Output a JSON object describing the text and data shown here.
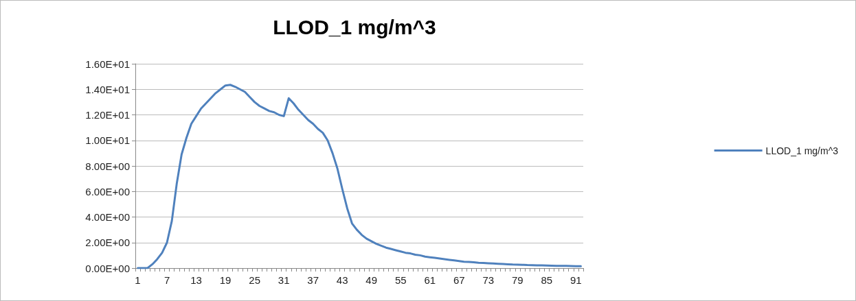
{
  "chart_data": {
    "type": "line",
    "title": "LLOD_1 mg/m^3",
    "categories": [
      "1",
      null,
      null,
      null,
      null,
      null,
      "7",
      null,
      null,
      null,
      null,
      null,
      "13",
      null,
      null,
      null,
      null,
      null,
      "19",
      null,
      null,
      null,
      null,
      null,
      "25",
      null,
      null,
      null,
      null,
      null,
      "31",
      null,
      null,
      null,
      null,
      null,
      "37",
      null,
      null,
      null,
      null,
      null,
      "43",
      null,
      null,
      null,
      null,
      null,
      "49",
      null,
      null,
      null,
      null,
      null,
      "55",
      null,
      null,
      null,
      null,
      null,
      "61",
      null,
      null,
      null,
      null,
      null,
      "67",
      null,
      null,
      null,
      null,
      null,
      "73",
      null,
      null,
      null,
      null,
      null,
      "79",
      null,
      null,
      null,
      null,
      null,
      "85",
      null,
      null,
      null,
      null,
      null,
      "91",
      null
    ],
    "series": [
      {
        "name": "LLOD_1 mg/m^3",
        "color": "#4f81bd",
        "values": [
          0,
          0,
          0,
          0.3,
          0.7,
          1.2,
          2.0,
          3.7,
          6.6,
          8.9,
          10.2,
          11.3,
          11.9,
          12.5,
          12.9,
          13.3,
          13.7,
          14.0,
          14.3,
          14.35,
          14.2,
          14.0,
          13.8,
          13.4,
          13.0,
          12.7,
          12.5,
          12.3,
          12.2,
          12.0,
          11.9,
          13.3,
          12.9,
          12.4,
          12.0,
          11.6,
          11.3,
          10.9,
          10.6,
          10.0,
          9.0,
          7.8,
          6.2,
          4.7,
          3.5,
          3.0,
          2.6,
          2.3,
          2.1,
          1.9,
          1.75,
          1.6,
          1.5,
          1.4,
          1.3,
          1.2,
          1.15,
          1.05,
          1.0,
          0.9,
          0.85,
          0.8,
          0.75,
          0.7,
          0.65,
          0.6,
          0.55,
          0.5,
          0.48,
          0.45,
          0.42,
          0.4,
          0.38,
          0.36,
          0.34,
          0.32,
          0.3,
          0.28,
          0.27,
          0.26,
          0.24,
          0.23,
          0.22,
          0.21,
          0.2,
          0.19,
          0.18,
          0.17,
          0.17,
          0.16,
          0.15,
          0.15
        ]
      }
    ],
    "ylim": [
      0,
      16
    ],
    "yticks": [
      {
        "value": 0,
        "label": "0.00E+00"
      },
      {
        "value": 2,
        "label": "2.00E+00"
      },
      {
        "value": 4,
        "label": "4.00E+00"
      },
      {
        "value": 6,
        "label": "6.00E+00"
      },
      {
        "value": 8,
        "label": "8.00E+00"
      },
      {
        "value": 10,
        "label": "1.00E+01"
      },
      {
        "value": 12,
        "label": "1.20E+01"
      },
      {
        "value": 14,
        "label": "1.40E+01"
      },
      {
        "value": 16,
        "label": "1.60E+01"
      }
    ],
    "grid": "y",
    "legend": "right",
    "marker": "none",
    "line_style": "solid"
  }
}
